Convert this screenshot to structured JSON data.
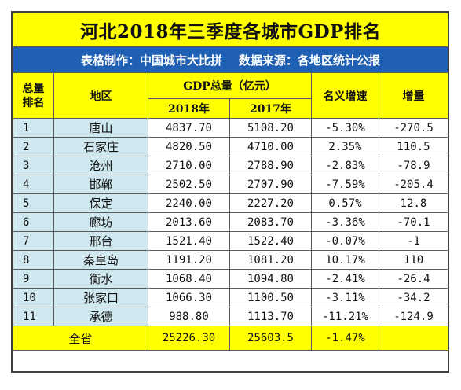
{
  "title": "河北2018年三季度各城市GDP排名",
  "subtitle": "表格制作：中国城市大比拼    数据来源：各地区统计公报",
  "headers": {
    "rank": "总量\n排名",
    "region": "地区",
    "gdp": "GDP总量（亿元）",
    "y2018": "2018年",
    "y2017": "2017年",
    "nominal_growth": "名义增速",
    "increase": "增量"
  },
  "rows": [
    {
      "rank": "1",
      "city": "唐山",
      "gdp2018": "4837.70",
      "gdp2017": "5108.20",
      "growth": "-5.30%",
      "increase": "-270.5"
    },
    {
      "rank": "2",
      "city": "石家庄",
      "gdp2018": "4820.50",
      "gdp2017": "4710.00",
      "growth": "2.35%",
      "increase": "110.5"
    },
    {
      "rank": "3",
      "city": "沧州",
      "gdp2018": "2710.00",
      "gdp2017": "2788.90",
      "growth": "-2.83%",
      "increase": "-78.9"
    },
    {
      "rank": "4",
      "city": "邯郸",
      "gdp2018": "2502.50",
      "gdp2017": "2707.90",
      "growth": "-7.59%",
      "increase": "-205.4"
    },
    {
      "rank": "5",
      "city": "保定",
      "gdp2018": "2240.00",
      "gdp2017": "2227.20",
      "growth": "0.57%",
      "increase": "12.8"
    },
    {
      "rank": "6",
      "city": "廊坊",
      "gdp2018": "2013.60",
      "gdp2017": "2083.70",
      "growth": "-3.36%",
      "increase": "-70.1"
    },
    {
      "rank": "7",
      "city": "邢台",
      "gdp2018": "1521.40",
      "gdp2017": "1522.40",
      "growth": "-0.07%",
      "increase": "-1"
    },
    {
      "rank": "8",
      "city": "秦皇岛",
      "gdp2018": "1191.20",
      "gdp2017": "1081.20",
      "growth": "10.17%",
      "increase": "110"
    },
    {
      "rank": "9",
      "city": "衡水",
      "gdp2018": "1068.40",
      "gdp2017": "1094.80",
      "growth": "-2.41%",
      "increase": "-26.4"
    },
    {
      "rank": "10",
      "city": "张家口",
      "gdp2018": "1066.30",
      "gdp2017": "1100.50",
      "growth": "-3.11%",
      "increase": "-34.2"
    },
    {
      "rank": "11",
      "city": "承德",
      "gdp2018": "988.80",
      "gdp2017": "1113.70",
      "growth": "-11.21%",
      "increase": "-124.9"
    }
  ],
  "total": {
    "label": "全省",
    "gdp2018": "25226.30",
    "gdp2017": "25603.5",
    "growth": "-1.47%",
    "increase": ""
  },
  "colors": {
    "title_bg": "#ffff00",
    "subtitle_bg": "#1f5fb4",
    "row_alt_bg": "#cfe8ef"
  }
}
